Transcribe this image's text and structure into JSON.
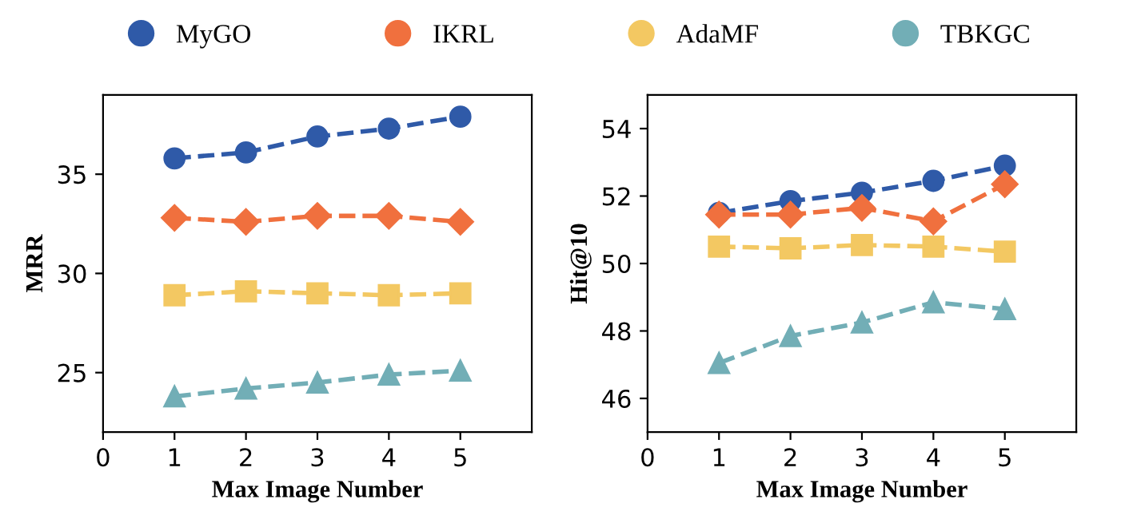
{
  "chart_data": [
    {
      "type": "line",
      "xlabel": "Max Image Number",
      "ylabel": "MRR",
      "x": [
        1,
        2,
        3,
        4,
        5
      ],
      "xlim": [
        0,
        6
      ],
      "xticks": [
        0,
        1,
        2,
        3,
        4,
        5
      ],
      "ylim": [
        22,
        39
      ],
      "yticks": [
        25,
        30,
        35
      ],
      "grid": false,
      "legend": "top",
      "line_style": "dashed",
      "series": [
        {
          "name": "MyGO",
          "color": "#2f5aa8",
          "marker": "circle",
          "values": [
            35.8,
            36.1,
            36.9,
            37.3,
            37.9
          ]
        },
        {
          "name": "IKRL",
          "color": "#f0703e",
          "marker": "diamond",
          "values": [
            32.8,
            32.6,
            32.9,
            32.9,
            32.6
          ]
        },
        {
          "name": "AdaMF",
          "color": "#f3c862",
          "marker": "square",
          "values": [
            28.9,
            29.1,
            29.0,
            28.9,
            29.0
          ]
        },
        {
          "name": "TBKGC",
          "color": "#72aeb6",
          "marker": "triangle",
          "values": [
            23.8,
            24.2,
            24.5,
            24.9,
            25.1
          ]
        }
      ]
    },
    {
      "type": "line",
      "xlabel": "Max Image Number",
      "ylabel": "Hit@10",
      "x": [
        1,
        2,
        3,
        4,
        5
      ],
      "xlim": [
        0,
        6
      ],
      "xticks": [
        0,
        1,
        2,
        3,
        4,
        5
      ],
      "ylim": [
        45,
        55
      ],
      "yticks": [
        46,
        48,
        50,
        52,
        54
      ],
      "grid": false,
      "line_style": "dashed",
      "series": [
        {
          "color": "#2f5aa8",
          "marker": "circle",
          "values": [
            51.5,
            51.85,
            52.1,
            52.45,
            52.9
          ]
        },
        {
          "color": "#f0703e",
          "marker": "diamond",
          "values": [
            51.45,
            51.45,
            51.65,
            51.25,
            52.35
          ]
        },
        {
          "color": "#f3c862",
          "marker": "square",
          "values": [
            50.5,
            50.45,
            50.55,
            50.5,
            50.35
          ]
        },
        {
          "color": "#72aeb6",
          "marker": "triangle",
          "values": [
            47.05,
            47.85,
            48.25,
            48.85,
            48.65
          ]
        }
      ]
    }
  ]
}
